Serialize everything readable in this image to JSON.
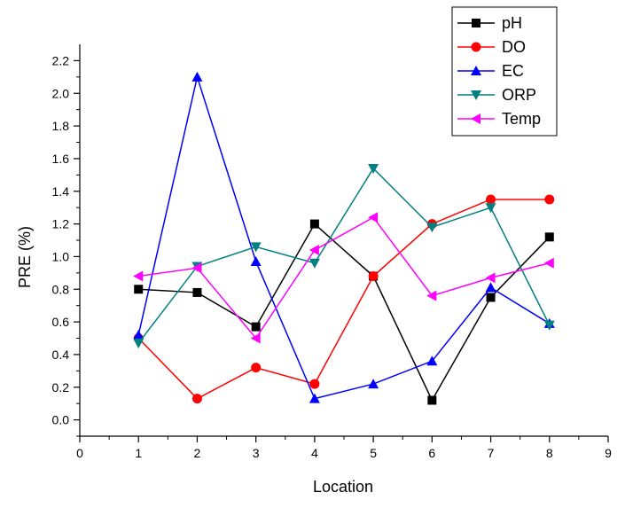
{
  "chart_data": {
    "type": "line",
    "xlabel": "Location",
    "ylabel": "PRE (%)",
    "xlim": [
      0,
      9
    ],
    "ylim": [
      -0.1,
      2.3
    ],
    "x_ticks": [
      0,
      1,
      2,
      3,
      4,
      5,
      6,
      7,
      8,
      9
    ],
    "y_ticks": [
      0.0,
      0.2,
      0.4,
      0.6,
      0.8,
      1.0,
      1.2,
      1.4,
      1.6,
      1.8,
      2.0,
      2.2
    ],
    "x_tick_labels": [
      "0",
      "1",
      "2",
      "3",
      "4",
      "5",
      "6",
      "7",
      "8",
      "9"
    ],
    "y_tick_labels": [
      "0.0",
      "0.2",
      "0.4",
      "0.6",
      "0.8",
      "1.0",
      "1.2",
      "1.4",
      "1.6",
      "1.8",
      "2.0",
      "2.2"
    ],
    "x": [
      1,
      2,
      3,
      4,
      5,
      6,
      7,
      8
    ],
    "grid": false,
    "legend_position": "top-right",
    "series": [
      {
        "name": "pH",
        "color": "#000000",
        "marker": "square",
        "values": [
          0.8,
          0.78,
          0.57,
          1.2,
          0.88,
          0.12,
          0.75,
          1.12
        ]
      },
      {
        "name": "DO",
        "color": "#ff0000",
        "marker": "circle",
        "values": [
          0.5,
          0.13,
          0.32,
          0.22,
          0.88,
          1.2,
          1.35,
          1.35
        ]
      },
      {
        "name": "EC",
        "color": "#0000ff",
        "marker": "triangle-up",
        "values": [
          0.52,
          2.1,
          0.97,
          0.13,
          0.22,
          0.36,
          0.81,
          0.59
        ]
      },
      {
        "name": "ORP",
        "color": "#008080",
        "marker": "triangle-down",
        "values": [
          0.47,
          0.94,
          1.06,
          0.96,
          1.54,
          1.18,
          1.3,
          0.58
        ]
      },
      {
        "name": "Temp",
        "color": "#ff00ff",
        "marker": "triangle-left",
        "values": [
          0.88,
          0.93,
          0.5,
          1.04,
          1.24,
          0.76,
          0.87,
          0.96
        ]
      }
    ]
  }
}
